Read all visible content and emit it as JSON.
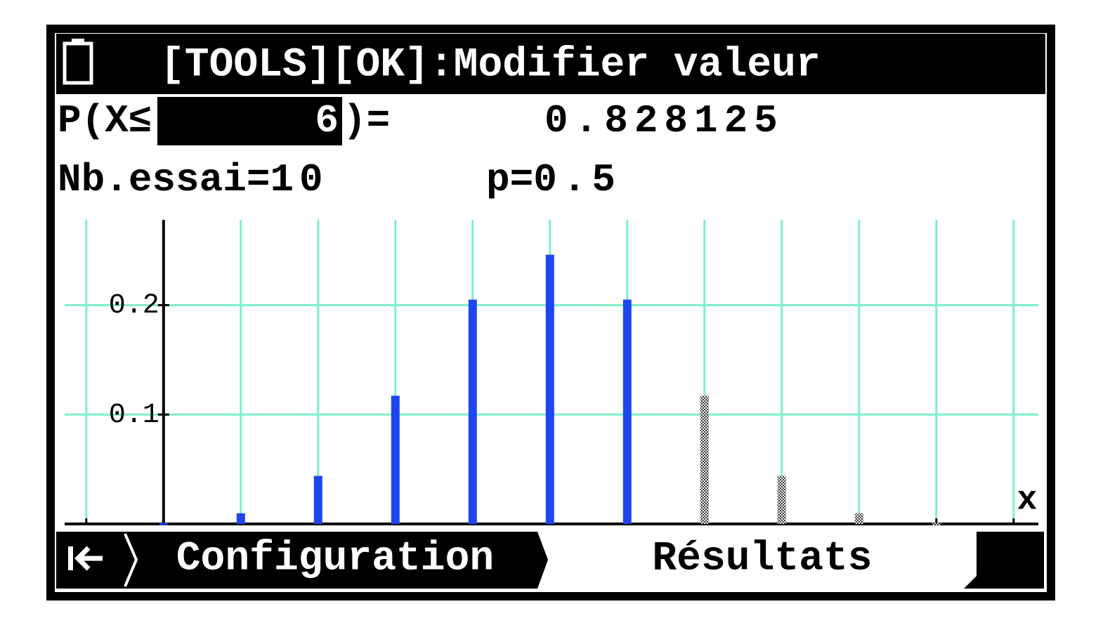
{
  "header": {
    "title": "[TOOLS][OK]:Modifier valeur"
  },
  "query": {
    "label": "P(X≤",
    "x": 6,
    "suffix": ")=",
    "result": 0.828125
  },
  "params": {
    "trials_label": "Nb.essai=",
    "trials": 10,
    "p_label": "p=",
    "p": 0.5
  },
  "chart_data": {
    "type": "bar",
    "x": [
      0,
      1,
      2,
      3,
      4,
      5,
      6,
      7,
      8,
      9,
      10
    ],
    "values": [
      0.0009765625,
      0.009765625,
      0.0439453125,
      0.1171875,
      0.205078125,
      0.24609375,
      0.205078125,
      0.1171875,
      0.0439453125,
      0.009765625,
      0.0009765625
    ],
    "color": "#1e46f0",
    "other_color": "#444444",
    "xlim": [
      -1.28,
      11.32
    ],
    "ylim": [
      0,
      0.278
    ],
    "xticks": [
      -1,
      0,
      1,
      2,
      3,
      4,
      5,
      6,
      7,
      8,
      9,
      10,
      11
    ],
    "yticks": [
      0.1,
      0.2
    ],
    "xlabel": "x",
    "grid": true,
    "grid_color": "#7ff0c8"
  },
  "tabs": [
    "Configuration",
    "Résultats"
  ]
}
